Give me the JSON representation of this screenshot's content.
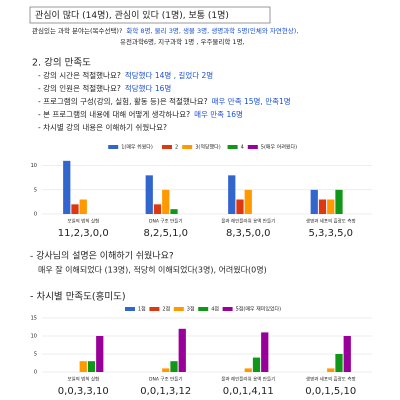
{
  "interest_box": "관심이 많다 (14명), 관심이 있다 (1명), 보통 (1명)",
  "interest_field": {
    "q": "관심있는 과학 분야는(복수선택)?",
    "a1": "화학 8명, 물리 3명, 생물 3명, 생명과학 5명(인체와 자연현상),",
    "a2": "유전과학6명, 지구과학 1명 , 우주물리학 1명,"
  },
  "section_title": "2. 강의 만족도",
  "questions": [
    {
      "q": "- 강의 시간은 적절했나요?",
      "a": "적당했다 14명 , 길었다 2명"
    },
    {
      "q": "- 강의 인원은 적절했나요?",
      "a": "적당했다 16명"
    },
    {
      "q": "- 프로그램의 구성(강의, 실험, 활동 등)은 적절했나요?",
      "a": "매우 만족 15명, 만족1명"
    },
    {
      "q": "- 본 프로그램의 내용에 대해 어떻게 생각하나요?",
      "a": "매우 만족 16명"
    },
    {
      "q": "- 차시별 강의 내용은 이해하기 쉬웠나요?"
    }
  ],
  "instructor": {
    "q": "- 강사님의 설명은 이해하기 쉬웠나요?",
    "a": "매우 잘 이해되었다 (13명), 적당히 이해되었다(3명), 어려웠다(0명)"
  },
  "satisfaction_title": "- 차시별 만족도(흥미도)",
  "chart_data": [
    {
      "type": "bar",
      "categories": [
        "보일의 법칙 실험",
        "DNA 구조 만들기",
        "물과 레인플라워 용액 만들기",
        "생명과 세포의 흡광도 측정"
      ],
      "series": [
        {
          "name": "1(매우 쉬웠다)",
          "color": "#3366cc",
          "values": [
            11,
            8,
            8,
            5
          ]
        },
        {
          "name": "2",
          "color": "#dc3912",
          "values": [
            2,
            2,
            3,
            3
          ]
        },
        {
          "name": "3(적당했다)",
          "color": "#ff9900",
          "values": [
            3,
            5,
            5,
            3
          ]
        },
        {
          "name": "4",
          "color": "#109618",
          "values": [
            0,
            1,
            0,
            5
          ]
        },
        {
          "name": "5(매우 어려웠다)",
          "color": "#990099",
          "values": [
            0,
            0,
            0,
            0
          ]
        }
      ],
      "category_value_labels": [
        "11,2,3,0,0",
        "8,2,5,1,0",
        "8,3,5,0,0",
        "5,3,3,5,0"
      ],
      "ylim": [
        0,
        12
      ],
      "yticks": [
        0,
        5,
        10
      ],
      "grid": true
    },
    {
      "type": "bar",
      "categories": [
        "보일의 법칙 실험",
        "DNA 구조 만들기",
        "물과 레인플라워 용액 만들기",
        "생명과 세포의 흡광도 측정"
      ],
      "series": [
        {
          "name": "1점",
          "color": "#3366cc",
          "values": [
            0,
            0,
            0,
            0
          ]
        },
        {
          "name": "2점",
          "color": "#dc3912",
          "values": [
            0,
            0,
            0,
            0
          ]
        },
        {
          "name": "3점",
          "color": "#ff9900",
          "values": [
            3,
            1,
            1,
            1
          ]
        },
        {
          "name": "4점",
          "color": "#109618",
          "values": [
            3,
            3,
            4,
            5
          ]
        },
        {
          "name": "5점(매우 재미있었다)",
          "color": "#990099",
          "values": [
            10,
            12,
            11,
            10
          ]
        }
      ],
      "category_value_labels": [
        "0,0,3,3,10",
        "0,0,1,3,12",
        "0,0,1,4,11",
        "0,0,1,5,10"
      ],
      "ylim": [
        0,
        15
      ],
      "yticks": [
        0,
        5,
        10,
        15
      ],
      "grid": true
    }
  ]
}
